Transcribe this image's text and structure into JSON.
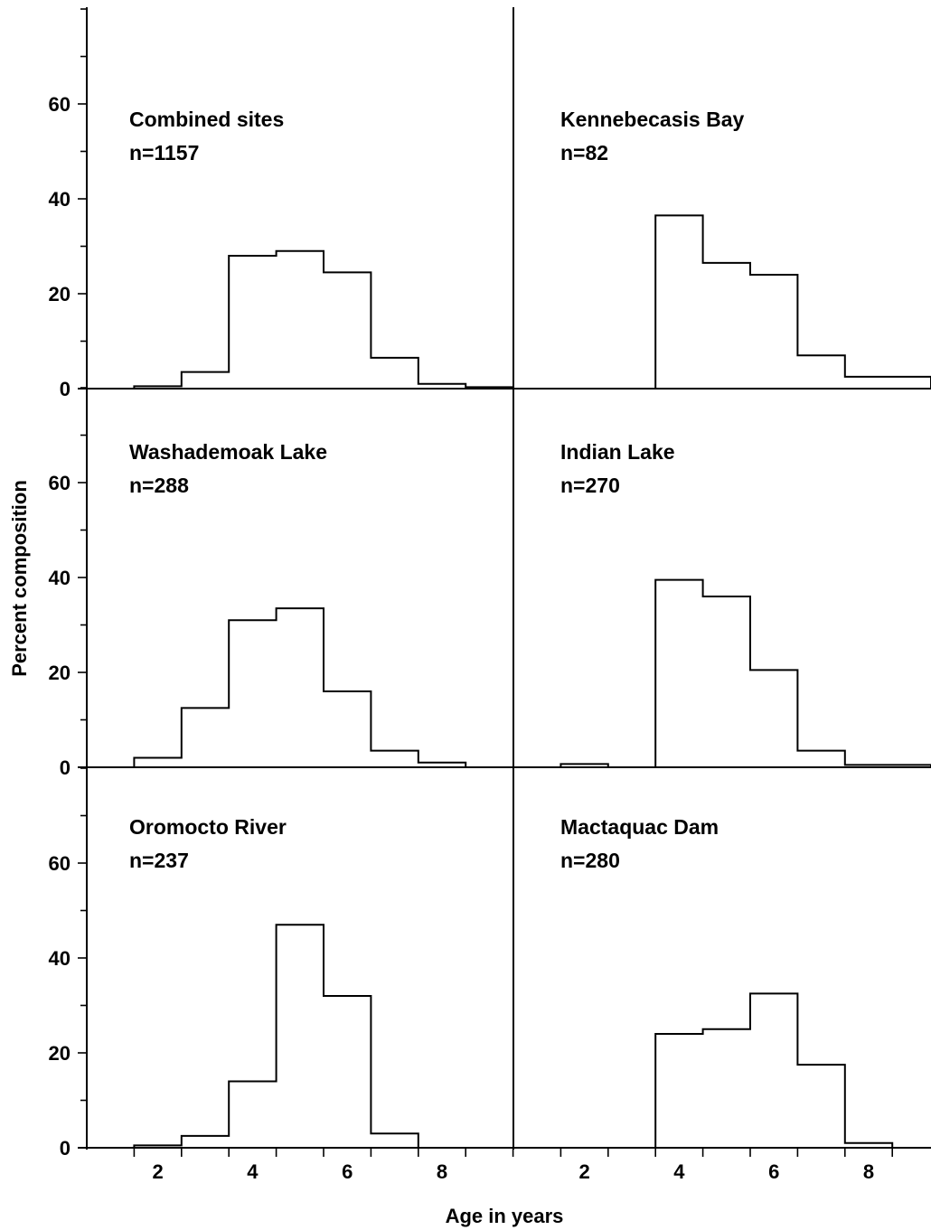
{
  "figure": {
    "ylabel": "Percent composition",
    "xlabel": "Age in years"
  },
  "chart_data": [
    {
      "type": "bar",
      "title": "Combined sites",
      "subtitle": "n=1157",
      "x": [
        2,
        3,
        4,
        5,
        6,
        7,
        8,
        9
      ],
      "values": [
        0.5,
        3.5,
        28,
        29,
        24.5,
        6.5,
        1,
        0.3
      ],
      "xticks": [
        2,
        4,
        6,
        8
      ],
      "yticks": [
        0,
        20,
        40,
        60
      ],
      "xlim": [
        0.5,
        9.5
      ],
      "ylim": [
        0,
        80
      ]
    },
    {
      "type": "bar",
      "title": "Kennebecasis Bay",
      "subtitle": "n=82",
      "x": [
        2,
        3,
        4,
        5,
        6,
        7,
        8,
        9
      ],
      "values": [
        0,
        0,
        36.5,
        26.5,
        24,
        7,
        2.5,
        2.5
      ],
      "xticks": [
        2,
        4,
        6,
        8
      ],
      "yticks": [
        0,
        20,
        40,
        60
      ],
      "xlim": [
        0.5,
        9.5
      ],
      "ylim": [
        0,
        80
      ]
    },
    {
      "type": "bar",
      "title": "Washademoak Lake",
      "subtitle": "n=288",
      "x": [
        2,
        3,
        4,
        5,
        6,
        7,
        8,
        9
      ],
      "values": [
        2,
        12.5,
        31,
        33.5,
        16,
        3.5,
        1,
        0
      ],
      "xticks": [
        2,
        4,
        6,
        8
      ],
      "yticks": [
        0,
        20,
        40,
        60
      ],
      "xlim": [
        0.5,
        9.5
      ],
      "ylim": [
        0,
        80
      ]
    },
    {
      "type": "bar",
      "title": "Indian Lake",
      "subtitle": "n=270",
      "x": [
        2,
        3,
        4,
        5,
        6,
        7,
        8,
        9
      ],
      "values": [
        0.7,
        0,
        39.5,
        36,
        20.5,
        3.5,
        0.5,
        0.5
      ],
      "xticks": [
        2,
        4,
        6,
        8
      ],
      "yticks": [
        0,
        20,
        40,
        60
      ],
      "xlim": [
        0.5,
        9.5
      ],
      "ylim": [
        0,
        80
      ]
    },
    {
      "type": "bar",
      "title": "Oromocto River",
      "subtitle": "n=237",
      "x": [
        2,
        3,
        4,
        5,
        6,
        7,
        8,
        9
      ],
      "values": [
        0.5,
        2.5,
        14,
        47,
        32,
        3,
        0,
        0
      ],
      "xticks": [
        2,
        4,
        6,
        8
      ],
      "yticks": [
        0,
        20,
        40,
        60
      ],
      "xlim": [
        0.5,
        9.5
      ],
      "ylim": [
        0,
        80
      ]
    },
    {
      "type": "bar",
      "title": "Mactaquac Dam",
      "subtitle": "n=280",
      "x": [
        2,
        3,
        4,
        5,
        6,
        7,
        8,
        9
      ],
      "values": [
        0,
        0,
        24,
        25,
        32.5,
        17.5,
        1,
        0
      ],
      "xticks": [
        2,
        4,
        6,
        8
      ],
      "yticks": [
        0,
        20,
        40,
        60
      ],
      "xlim": [
        0.5,
        9.5
      ],
      "ylim": [
        0,
        80
      ]
    }
  ]
}
